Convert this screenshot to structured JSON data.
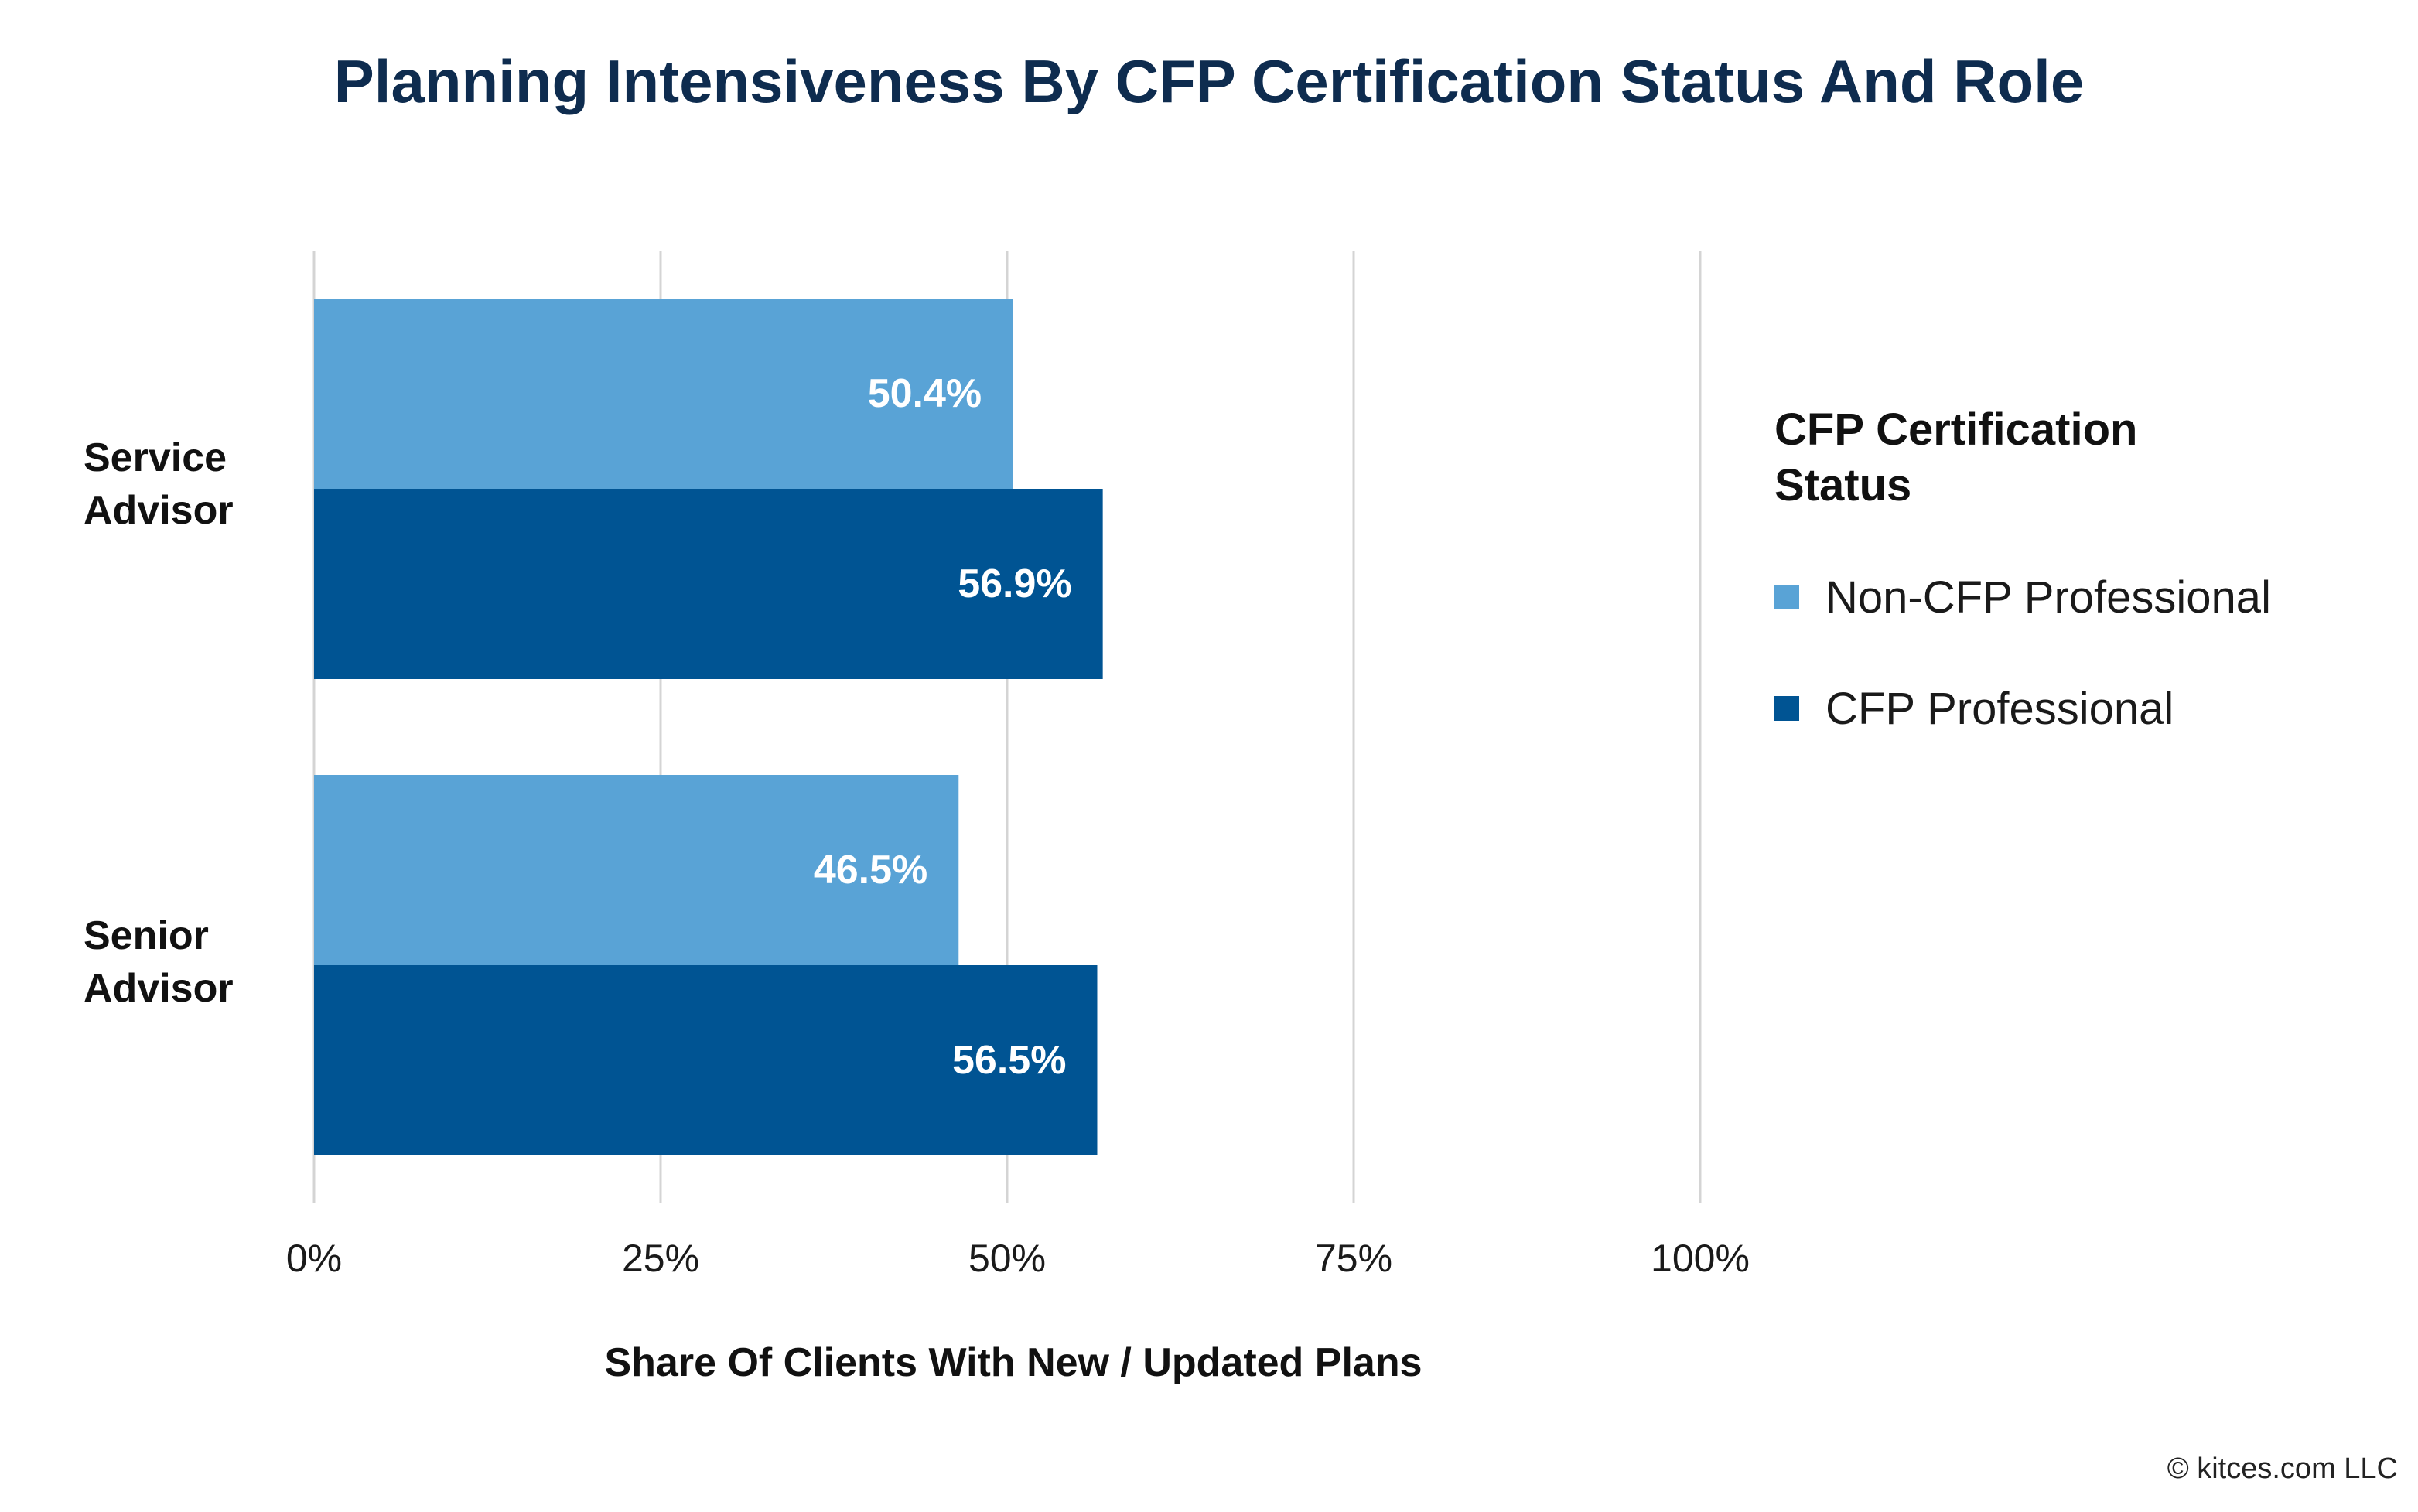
{
  "colors": {
    "title": "#0e2c4f",
    "non_cfp": "#59a3d6",
    "cfp": "#005493",
    "grid": "#d4d4d4",
    "bar_label": "#ffffff"
  },
  "chart_data": {
    "type": "bar",
    "orientation": "horizontal",
    "title": "Planning Intensiveness By CFP Certification Status And Role",
    "xlabel": "Share Of Clients With New / Updated Plans",
    "ylabel": "",
    "categories": [
      "Service Advisor",
      "Senior Advisor"
    ],
    "category_lines": [
      [
        "Service",
        "Advisor"
      ],
      [
        "Senior",
        "Advisor"
      ]
    ],
    "series": [
      {
        "name": "Non-CFP Professional",
        "values": [
          50.4,
          46.5
        ],
        "labels": [
          "50.4%",
          "46.5%"
        ]
      },
      {
        "name": "CFP Professional",
        "values": [
          56.9,
          56.5
        ],
        "labels": [
          "56.9%",
          "56.5%"
        ]
      }
    ],
    "xlim": [
      0,
      100
    ],
    "xticks": [
      0,
      25,
      50,
      75,
      100
    ],
    "xtick_labels": [
      "0%",
      "25%",
      "50%",
      "75%",
      "100%"
    ],
    "grid": true,
    "legend": {
      "title": "CFP Certification Status",
      "title_lines": [
        "CFP Certification",
        "Status"
      ],
      "placement": "right"
    }
  },
  "footer": {
    "credit": "© kitces.com LLC"
  }
}
